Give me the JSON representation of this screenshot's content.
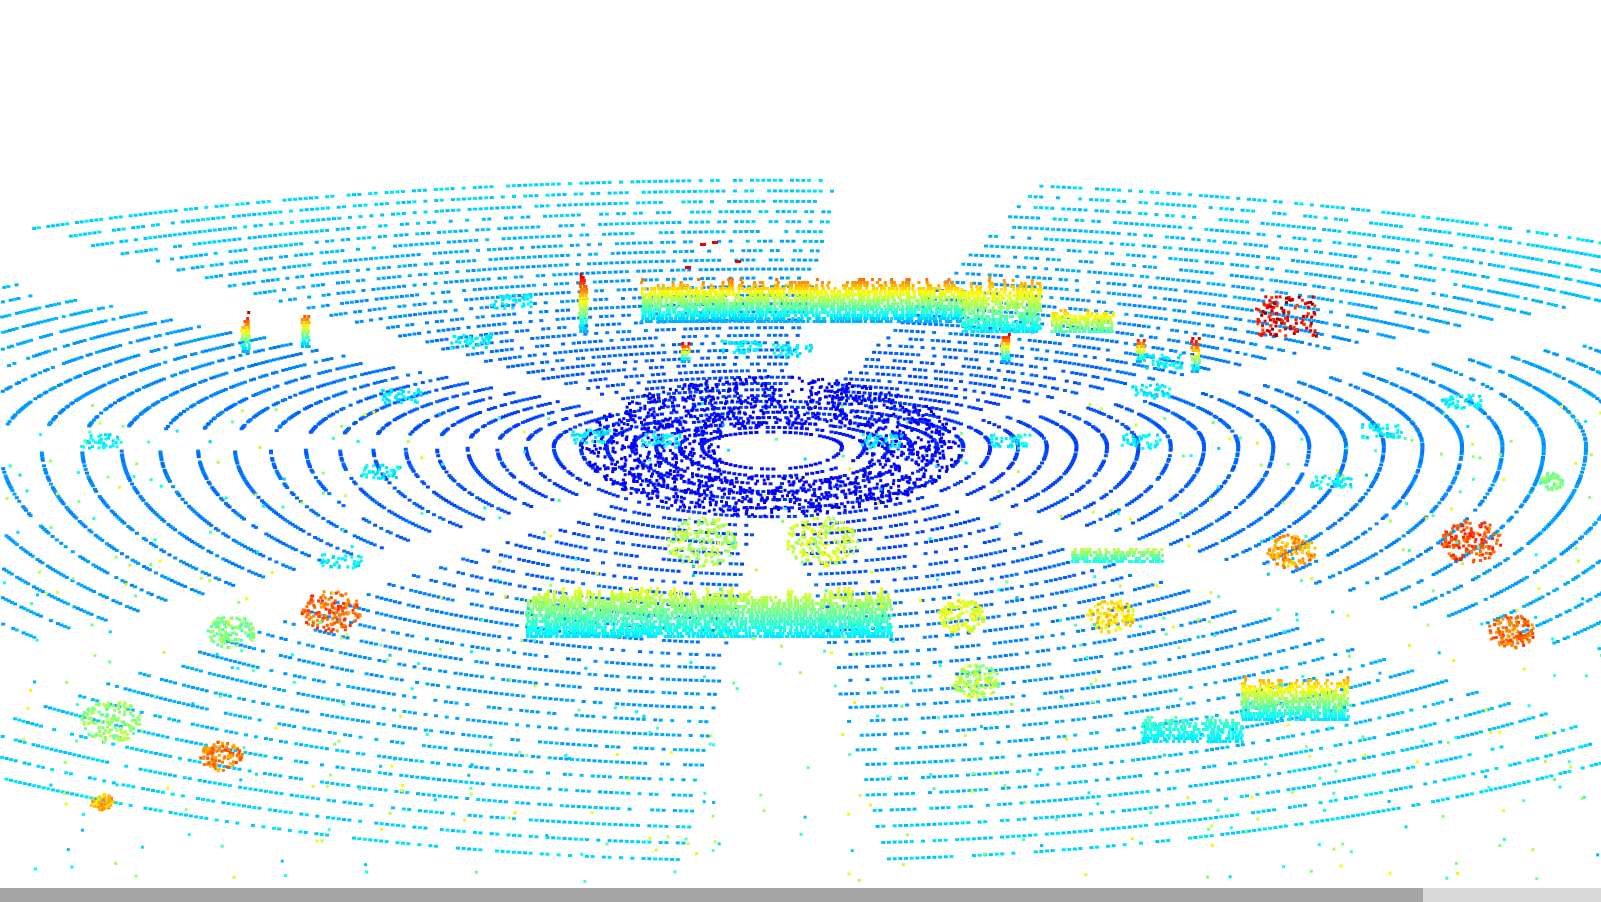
{
  "viewer": {
    "background_color": "#ffffff",
    "colormap": "jet",
    "colormap_stops": [
      "#00008f",
      "#0000ff",
      "#0080ff",
      "#00ffff",
      "#80ff80",
      "#ffff00",
      "#ff8000",
      "#ff0000",
      "#800000"
    ]
  },
  "scrollbar": {
    "track_color": "#d9d9d9",
    "thumb_color": "#a6a6a6",
    "position_fraction": 0.0
  }
}
